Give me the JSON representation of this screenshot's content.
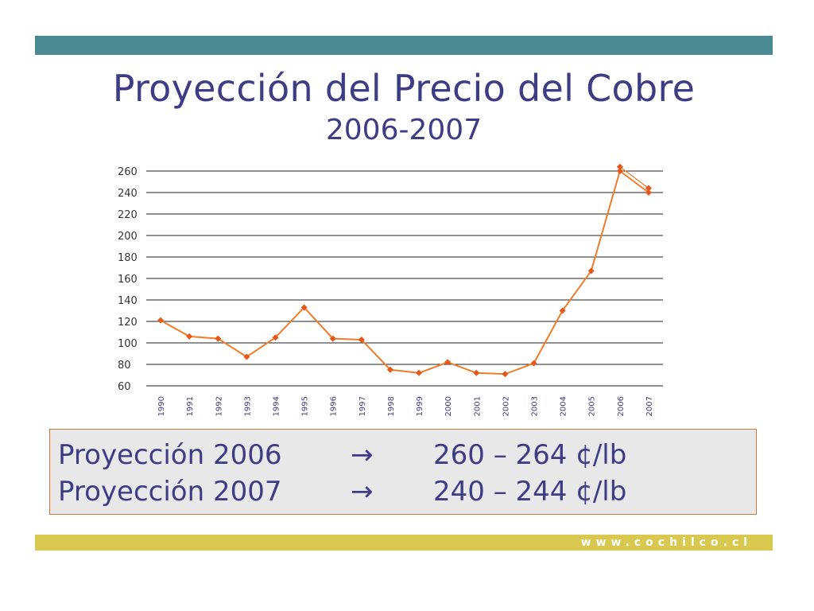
{
  "slide": {
    "title": "Proyección del Precio del Cobre",
    "subtitle": "2006-2007"
  },
  "projections": [
    {
      "label": "Proyección 2006",
      "arrow": "→",
      "range": "260 – 264 ¢/lb"
    },
    {
      "label": "Proyección 2007",
      "arrow": "→",
      "range": "240 – 244 ¢/lb"
    }
  ],
  "footer": {
    "website": "www.cochilco.cl"
  },
  "colors": {
    "top_bar": "#4b8a93",
    "bottom_bar": "#d9c84f",
    "title_text": "#3d3c85",
    "line": "#f07c2a",
    "marker": "#e8561a"
  },
  "chart_data": {
    "type": "line",
    "title": "",
    "xlabel": "",
    "ylabel": "",
    "ylim": [
      60,
      260
    ],
    "yticks": [
      60,
      80,
      100,
      120,
      140,
      160,
      180,
      200,
      220,
      240,
      260
    ],
    "grid": true,
    "legend": "none",
    "categories": [
      "1990",
      "1991",
      "1992",
      "1993",
      "1994",
      "1995",
      "1996",
      "1997",
      "1998",
      "1999",
      "2000",
      "2001",
      "2002",
      "2003",
      "2004",
      "2005",
      "2006",
      "2007"
    ],
    "series": [
      {
        "values": [
          121,
          106,
          104,
          87,
          105,
          133,
          104,
          103,
          75,
          72,
          82,
          72,
          71,
          81,
          130,
          167,
          260,
          240
        ]
      },
      {
        "values": [
          null,
          null,
          null,
          null,
          null,
          null,
          null,
          null,
          null,
          null,
          null,
          null,
          null,
          null,
          null,
          null,
          264,
          244
        ]
      }
    ]
  }
}
